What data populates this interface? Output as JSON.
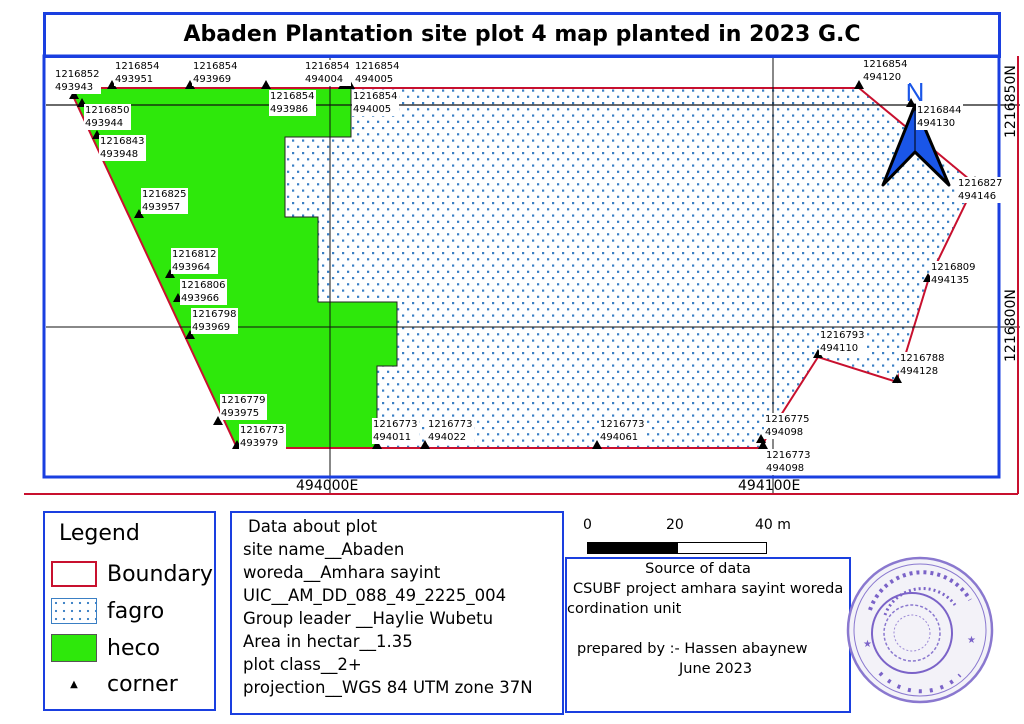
{
  "title": "Abaden Plantation site plot 4 map planted in 2023 G.C",
  "north_arrow": {
    "label": "N",
    "color": "#1a56e8"
  },
  "grid": {
    "x_labels": [
      "494000E",
      "494100E"
    ],
    "y_labels": [
      "1216850N",
      "1216800N"
    ]
  },
  "colors": {
    "frame": "#1a3fe0",
    "boundary": "#c8102e",
    "heco_fill": "#2ee80b",
    "fagro_dot": "#3a7fc4"
  },
  "corners": [
    {
      "northing": "1216852",
      "easting": "493943"
    },
    {
      "northing": "1216854",
      "easting": "493951"
    },
    {
      "northing": "1216854",
      "easting": "493969"
    },
    {
      "northing": "1216854",
      "easting": "494004"
    },
    {
      "northing": "1216854",
      "easting": "494005"
    },
    {
      "northing": "1216854",
      "easting": "493986"
    },
    {
      "northing": "1216854",
      "easting": "494005"
    },
    {
      "northing": "1216850",
      "easting": "493944"
    },
    {
      "northing": "1216843",
      "easting": "493948"
    },
    {
      "northing": "1216825",
      "easting": "493957"
    },
    {
      "northing": "1216812",
      "easting": "493964"
    },
    {
      "northing": "1216806",
      "easting": "493966"
    },
    {
      "northing": "1216798",
      "easting": "493969"
    },
    {
      "northing": "1216779",
      "easting": "493975"
    },
    {
      "northing": "1216773",
      "easting": "493979"
    },
    {
      "northing": "1216773",
      "easting": "494011"
    },
    {
      "northing": "1216773",
      "easting": "494022"
    },
    {
      "northing": "1216773",
      "easting": "494061"
    },
    {
      "northing": "1216775",
      "easting": "494098"
    },
    {
      "northing": "1216773",
      "easting": "494098"
    },
    {
      "northing": "1216854",
      "easting": "494120"
    },
    {
      "northing": "1216844",
      "easting": "494130"
    },
    {
      "northing": "1216827",
      "easting": "494146"
    },
    {
      "northing": "1216809",
      "easting": "494135"
    },
    {
      "northing": "1216793",
      "easting": "494110"
    },
    {
      "northing": "1216788",
      "easting": "494128"
    }
  ],
  "legend": {
    "title": "Legend",
    "items": [
      {
        "label": "Boundary",
        "symbol": "red-outline-box"
      },
      {
        "label": "fagro",
        "symbol": "blue-dot-pattern"
      },
      {
        "label": "heco",
        "symbol": "green-fill"
      },
      {
        "label": "corner",
        "symbol": "black-triangle"
      }
    ]
  },
  "plot_data": {
    "heading": "Data about plot",
    "lines": [
      "site name__Abaden",
      "woreda__Amhara sayint",
      "UIC__AM_DD_088_49_2225_004",
      "Group leader __Haylie Wubetu",
      "Area in hectar__1.35",
      "plot class__2+",
      "projection__WGS 84 UTM zone 37N"
    ]
  },
  "scale_bar": {
    "labels": [
      "0",
      "20",
      "40 m"
    ]
  },
  "source": {
    "heading": "Source of data",
    "line1": "CSUBF project amhara sayint woreda",
    "line2": "cordination unit",
    "prepared_by": "prepared by :- Hassen abaynew",
    "date": "June 2023"
  }
}
